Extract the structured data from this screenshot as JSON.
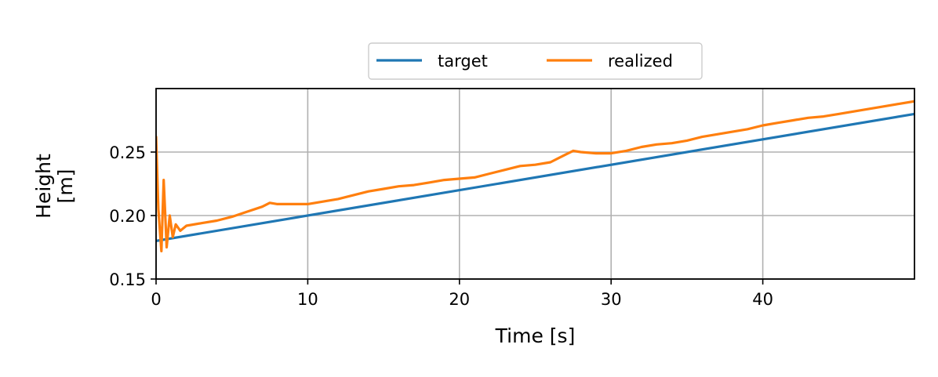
{
  "chart_data": {
    "type": "line",
    "xlabel": "Time [s]",
    "ylabel_lines": [
      "Height",
      "[m]"
    ],
    "xlim": [
      0,
      50
    ],
    "ylim": [
      0.15,
      0.3
    ],
    "xticks": [
      0,
      10,
      20,
      30,
      40
    ],
    "xtick_labels": [
      "0",
      "10",
      "20",
      "30",
      "40"
    ],
    "yticks": [
      0.15,
      0.2,
      0.25
    ],
    "ytick_labels": [
      "0.15",
      "0.20",
      "0.25"
    ],
    "grid": true,
    "legend_position": "top-center",
    "series": [
      {
        "name": "target",
        "color": "#1f77b4",
        "x": [
          0,
          50
        ],
        "y": [
          0.18,
          0.28
        ]
      },
      {
        "name": "realized",
        "color": "#ff7f0e",
        "x": [
          0,
          0.15,
          0.35,
          0.5,
          0.7,
          0.9,
          1.1,
          1.3,
          1.6,
          2,
          3,
          4,
          5,
          6,
          7,
          7.5,
          8,
          9,
          10,
          11,
          12,
          13,
          14,
          15,
          16,
          17,
          18,
          19,
          20,
          21,
          22,
          23,
          24,
          25,
          26,
          26.5,
          27,
          27.5,
          28,
          29,
          30,
          31,
          32,
          33,
          34,
          35,
          36,
          37,
          38,
          39,
          40,
          41,
          42,
          43,
          44,
          45,
          46,
          47,
          48,
          49,
          50
        ],
        "y": [
          0.262,
          0.205,
          0.172,
          0.228,
          0.175,
          0.2,
          0.183,
          0.193,
          0.188,
          0.192,
          0.194,
          0.196,
          0.199,
          0.203,
          0.207,
          0.21,
          0.209,
          0.209,
          0.209,
          0.211,
          0.213,
          0.216,
          0.219,
          0.221,
          0.223,
          0.224,
          0.226,
          0.228,
          0.229,
          0.23,
          0.233,
          0.236,
          0.239,
          0.24,
          0.242,
          0.245,
          0.248,
          0.251,
          0.25,
          0.249,
          0.249,
          0.251,
          0.254,
          0.256,
          0.257,
          0.259,
          0.262,
          0.264,
          0.266,
          0.268,
          0.271,
          0.273,
          0.275,
          0.277,
          0.278,
          0.28,
          0.282,
          0.284,
          0.286,
          0.288,
          0.29
        ]
      }
    ]
  }
}
